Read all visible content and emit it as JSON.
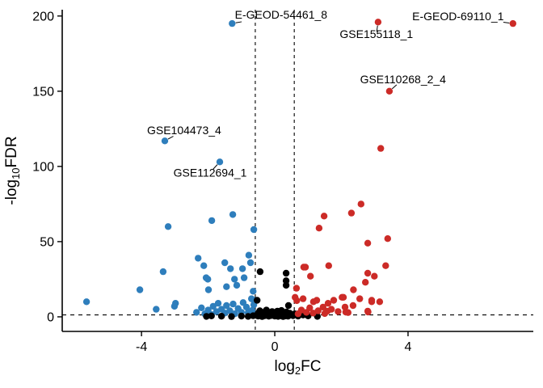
{
  "chart_data": {
    "type": "scatter",
    "title": "",
    "xlabel": {
      "pre": "log",
      "sub": "2",
      "post": "FC"
    },
    "ylabel": {
      "pre": "-log",
      "sub": "10",
      "post": "FDR"
    },
    "xlim": [
      -6.38,
      7.76
    ],
    "ylim": [
      -9.7,
      204.2
    ],
    "x_ticks": [
      -4,
      0,
      4
    ],
    "y_ticks": [
      0,
      50,
      100,
      150,
      200
    ],
    "grid": false,
    "legend": "none",
    "thresholds": {
      "log2fc": [
        -0.585,
        0.585
      ],
      "neglog10fdr": 1.3,
      "line_style": "dashed",
      "line_color": "#000000"
    },
    "colors": {
      "up": "#CC2B27",
      "down": "#2E7EBC",
      "ns": "#000000",
      "axis": "#000000",
      "background": "#FFFFFF"
    },
    "series": [
      {
        "name": "down",
        "color_key": "down",
        "points": [
          [
            -1.28,
            195
          ],
          [
            -3.3,
            117
          ],
          [
            -1.65,
            103
          ],
          [
            -1.26,
            68
          ],
          [
            -1.89,
            64
          ],
          [
            -3.2,
            60
          ],
          [
            -0.63,
            58
          ],
          [
            -0.78,
            41
          ],
          [
            -2.3,
            39
          ],
          [
            -0.73,
            36
          ],
          [
            -1.5,
            36
          ],
          [
            -2.13,
            34
          ],
          [
            -1.33,
            32
          ],
          [
            -0.97,
            32
          ],
          [
            -3.35,
            30
          ],
          [
            -2.06,
            26
          ],
          [
            -0.92,
            26
          ],
          [
            -1.21,
            25
          ],
          [
            -2.01,
            25
          ],
          [
            -1.14,
            21
          ],
          [
            -1.45,
            20
          ],
          [
            -4.05,
            18
          ],
          [
            -1.99,
            18
          ],
          [
            -0.65,
            17
          ],
          [
            -5.65,
            10
          ],
          [
            -0.63,
            11
          ],
          [
            -0.63,
            8
          ],
          [
            -3.56,
            5
          ],
          [
            -3.01,
            7
          ],
          [
            -2.98,
            9
          ],
          [
            -2.35,
            3
          ],
          [
            -2.2,
            6
          ],
          [
            -2.1,
            2
          ],
          [
            -2.0,
            4.5
          ],
          [
            -1.9,
            1.5
          ],
          [
            -1.85,
            7
          ],
          [
            -1.75,
            3.5
          ],
          [
            -1.7,
            9
          ],
          [
            -1.6,
            5
          ],
          [
            -1.5,
            2.5
          ],
          [
            -1.45,
            7.5
          ],
          [
            -1.35,
            4
          ],
          [
            -1.25,
            8.5
          ],
          [
            -1.2,
            2
          ],
          [
            -1.1,
            5.5
          ],
          [
            -1.0,
            3
          ],
          [
            -0.95,
            9.5
          ],
          [
            -0.85,
            6.5
          ],
          [
            -0.8,
            2.8
          ],
          [
            -0.7,
            12
          ],
          [
            -0.68,
            4.2
          ]
        ]
      },
      {
        "name": "ns",
        "color_key": "ns",
        "points": [
          [
            -0.44,
            30
          ],
          [
            0.34,
            29
          ],
          [
            0.34,
            24
          ],
          [
            0.34,
            21
          ],
          [
            -0.53,
            11
          ],
          [
            0.41,
            7.5
          ],
          [
            -2.05,
            0.3
          ],
          [
            -1.9,
            0.6
          ],
          [
            -1.6,
            0.4
          ],
          [
            -1.3,
            0.2
          ],
          [
            -1.0,
            0.5
          ],
          [
            -0.8,
            0.3
          ],
          [
            -0.65,
            0.7
          ],
          [
            -0.55,
            1
          ],
          [
            -0.5,
            2.5
          ],
          [
            -0.5,
            0.5
          ],
          [
            -0.45,
            4
          ],
          [
            -0.4,
            1.5
          ],
          [
            -0.38,
            0.2
          ],
          [
            -0.35,
            3
          ],
          [
            -0.3,
            0.8
          ],
          [
            -0.28,
            2
          ],
          [
            -0.25,
            4.5
          ],
          [
            -0.2,
            1.2
          ],
          [
            -0.18,
            0.4
          ],
          [
            -0.15,
            2.8
          ],
          [
            -0.1,
            0.9
          ],
          [
            -0.08,
            3.5
          ],
          [
            -0.05,
            1.8
          ],
          [
            0,
            0.5
          ],
          [
            0.02,
            2.2
          ],
          [
            0.05,
            1
          ],
          [
            0.08,
            3.8
          ],
          [
            0.1,
            0.3
          ],
          [
            0.12,
            1.6
          ],
          [
            0.15,
            2.6
          ],
          [
            0.18,
            0.7
          ],
          [
            0.2,
            4.2
          ],
          [
            0.22,
            1.4
          ],
          [
            0.25,
            0.2
          ],
          [
            0.28,
            2.9
          ],
          [
            0.3,
            1.1
          ],
          [
            0.32,
            0.6
          ],
          [
            0.35,
            3.2
          ],
          [
            0.38,
            1.9
          ],
          [
            0.4,
            0.4
          ],
          [
            0.45,
            2.4
          ],
          [
            0.5,
            1.3
          ],
          [
            0.55,
            0.8
          ],
          [
            0.6,
            2
          ],
          [
            0.7,
            0.5
          ],
          [
            0.85,
            1.2
          ],
          [
            1.0,
            0.6
          ],
          [
            1.28,
            0.3
          ]
        ]
      },
      {
        "name": "up",
        "color_key": "up",
        "points": [
          [
            7.15,
            195
          ],
          [
            3.1,
            196
          ],
          [
            3.44,
            150
          ],
          [
            3.18,
            112
          ],
          [
            2.59,
            75
          ],
          [
            2.3,
            69
          ],
          [
            1.48,
            67
          ],
          [
            1.33,
            59
          ],
          [
            3.39,
            52
          ],
          [
            2.79,
            49
          ],
          [
            1.62,
            34
          ],
          [
            3.33,
            34
          ],
          [
            0.92,
            33
          ],
          [
            0.87,
            33
          ],
          [
            2.79,
            29
          ],
          [
            1.07,
            27
          ],
          [
            2.99,
            27
          ],
          [
            2.72,
            23
          ],
          [
            0.65,
            19
          ],
          [
            2.36,
            18
          ],
          [
            2.02,
            13
          ],
          [
            1.26,
            11
          ],
          [
            2.91,
            10
          ],
          [
            1.6,
            9
          ],
          [
            0.61,
            13
          ],
          [
            0.85,
            12
          ],
          [
            1.16,
            10
          ],
          [
            1.45,
            6.5
          ],
          [
            1.77,
            11
          ],
          [
            2.06,
            13
          ],
          [
            2.11,
            6.5
          ],
          [
            2.35,
            7.5
          ],
          [
            2.55,
            12
          ],
          [
            2.79,
            3.8
          ],
          [
            2.91,
            11
          ],
          [
            3.15,
            10
          ],
          [
            1.58,
            3.8
          ],
          [
            0.66,
            10.8
          ],
          [
            2.13,
            3.2
          ],
          [
            2.8,
            3.2
          ],
          [
            0.7,
            2
          ],
          [
            0.8,
            4.5
          ],
          [
            0.95,
            3
          ],
          [
            1.05,
            6
          ],
          [
            1.15,
            2.5
          ],
          [
            1.3,
            4
          ],
          [
            1.5,
            2.2
          ],
          [
            1.7,
            5
          ],
          [
            1.9,
            3.5
          ],
          [
            2.2,
            2.8
          ]
        ]
      }
    ],
    "annotations": [
      {
        "text": "E-GEOD-54461_8",
        "point": [
          -1.28,
          195
        ],
        "label": [
          0.19,
          201
        ]
      },
      {
        "text": "E-GEOD-69110_1",
        "point": [
          7.15,
          195
        ],
        "label": [
          5.5,
          200
        ]
      },
      {
        "text": "GSE155118_1",
        "point": [
          3.1,
          196
        ],
        "label": [
          3.05,
          188
        ]
      },
      {
        "text": "GSE110268_2_4",
        "point": [
          3.44,
          150
        ],
        "label": [
          3.85,
          158
        ]
      },
      {
        "text": "GSE104473_4",
        "point": [
          -3.3,
          117
        ],
        "label": [
          -2.72,
          124
        ]
      },
      {
        "text": "GSE112694_1",
        "point": [
          -1.65,
          103
        ],
        "label": [
          -1.94,
          96
        ]
      }
    ]
  }
}
